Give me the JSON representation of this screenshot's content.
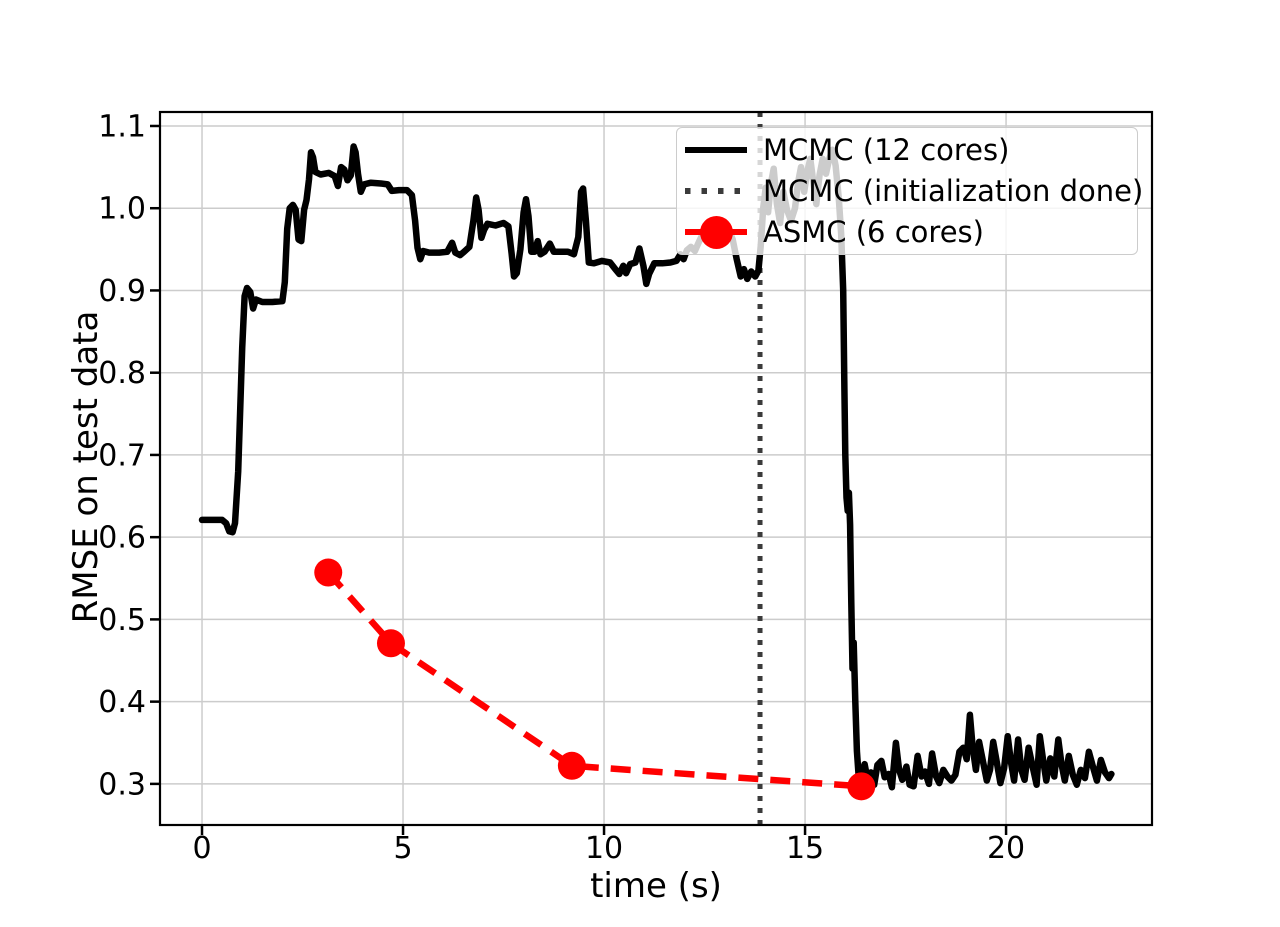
{
  "figure": {
    "background": "#ffffff"
  },
  "colors": {
    "mcmc_line": "#000000",
    "init_vline": "#3b3b3b",
    "asmc_line": "#ff0000",
    "grid": "#cccccc",
    "spine": "#000000",
    "legend_border": "#cccccc",
    "legend_background": "rgba(255,255,255,0.8)"
  },
  "legend": {
    "items": [
      {
        "label": "MCMC (12 cores)",
        "color": "#000000",
        "swatch": "solid-line"
      },
      {
        "label": "MCMC (initialization done)",
        "color": "#3b3b3b",
        "swatch": "dotted-line"
      },
      {
        "label": "ASMC (6 cores)",
        "color": "#ff0000",
        "swatch": "line-with-circle-marker"
      }
    ]
  },
  "chart_data": {
    "type": "line",
    "title": "",
    "xlabel": "time (s)",
    "ylabel": "RMSE on test data",
    "xlim": [
      -1.045,
      23.63
    ],
    "ylim": [
      0.25,
      1.117
    ],
    "grid": true,
    "legend_position": "upper right",
    "x_ticks": [
      0,
      5,
      10,
      15,
      20
    ],
    "x_tick_labels": [
      "0",
      "5",
      "10",
      "15",
      "20"
    ],
    "y_ticks": [
      0.3,
      0.4,
      0.5,
      0.6,
      0.7,
      0.8,
      0.9,
      1.0,
      1.1
    ],
    "y_tick_labels": [
      "0.3",
      "0.4",
      "0.5",
      "0.6",
      "0.7",
      "0.8",
      "0.9",
      "1.0",
      "1.1"
    ],
    "series": [
      {
        "name": "MCMC (12 cores)",
        "kind": "line",
        "color": "#000000",
        "linewidth": 6.5,
        "linestyle": "solid",
        "marker": "none",
        "points": [
          [
            0,
            0.621
          ],
          [
            0.5,
            0.621
          ],
          [
            0.6,
            0.617
          ],
          [
            0.68,
            0.607
          ],
          [
            0.76,
            0.606
          ],
          [
            0.82,
            0.617
          ],
          [
            0.9,
            0.68
          ],
          [
            1.0,
            0.83
          ],
          [
            1.06,
            0.893
          ],
          [
            1.12,
            0.903
          ],
          [
            1.2,
            0.898
          ],
          [
            1.27,
            0.878
          ],
          [
            1.34,
            0.889
          ],
          [
            1.5,
            0.886
          ],
          [
            1.75,
            0.886
          ],
          [
            2.0,
            0.887
          ],
          [
            2.06,
            0.91
          ],
          [
            2.12,
            0.975
          ],
          [
            2.18,
            1.0
          ],
          [
            2.26,
            1.004
          ],
          [
            2.33,
            0.998
          ],
          [
            2.4,
            0.962
          ],
          [
            2.47,
            0.96
          ],
          [
            2.54,
            0.998
          ],
          [
            2.6,
            1.01
          ],
          [
            2.66,
            1.035
          ],
          [
            2.71,
            1.068
          ],
          [
            2.76,
            1.062
          ],
          [
            2.82,
            1.044
          ],
          [
            2.95,
            1.041
          ],
          [
            3.15,
            1.043
          ],
          [
            3.3,
            1.039
          ],
          [
            3.38,
            1.027
          ],
          [
            3.46,
            1.05
          ],
          [
            3.54,
            1.047
          ],
          [
            3.62,
            1.034
          ],
          [
            3.7,
            1.04
          ],
          [
            3.77,
            1.075
          ],
          [
            3.82,
            1.068
          ],
          [
            3.88,
            1.042
          ],
          [
            3.95,
            1.02
          ],
          [
            4.03,
            1.029
          ],
          [
            4.2,
            1.031
          ],
          [
            4.45,
            1.03
          ],
          [
            4.62,
            1.029
          ],
          [
            4.72,
            1.021
          ],
          [
            4.9,
            1.022
          ],
          [
            5.1,
            1.022
          ],
          [
            5.22,
            1.016
          ],
          [
            5.3,
            0.985
          ],
          [
            5.36,
            0.952
          ],
          [
            5.43,
            0.938
          ],
          [
            5.5,
            0.948
          ],
          [
            5.65,
            0.946
          ],
          [
            5.9,
            0.946
          ],
          [
            6.1,
            0.947
          ],
          [
            6.22,
            0.958
          ],
          [
            6.3,
            0.946
          ],
          [
            6.42,
            0.943
          ],
          [
            6.52,
            0.947
          ],
          [
            6.65,
            0.953
          ],
          [
            6.75,
            0.985
          ],
          [
            6.82,
            1.013
          ],
          [
            6.88,
            0.998
          ],
          [
            6.95,
            0.964
          ],
          [
            7.02,
            0.974
          ],
          [
            7.1,
            0.981
          ],
          [
            7.3,
            0.979
          ],
          [
            7.5,
            0.982
          ],
          [
            7.62,
            0.978
          ],
          [
            7.7,
            0.945
          ],
          [
            7.76,
            0.917
          ],
          [
            7.83,
            0.921
          ],
          [
            7.92,
            0.95
          ],
          [
            8.0,
            0.995
          ],
          [
            8.06,
            1.011
          ],
          [
            8.12,
            0.99
          ],
          [
            8.19,
            0.947
          ],
          [
            8.27,
            0.947
          ],
          [
            8.35,
            0.96
          ],
          [
            8.42,
            0.944
          ],
          [
            8.52,
            0.947
          ],
          [
            8.65,
            0.957
          ],
          [
            8.75,
            0.947
          ],
          [
            8.9,
            0.947
          ],
          [
            9.1,
            0.947
          ],
          [
            9.25,
            0.944
          ],
          [
            9.36,
            0.965
          ],
          [
            9.43,
            1.02
          ],
          [
            9.48,
            1.024
          ],
          [
            9.55,
            0.985
          ],
          [
            9.62,
            0.934
          ],
          [
            9.75,
            0.933
          ],
          [
            9.95,
            0.936
          ],
          [
            10.15,
            0.934
          ],
          [
            10.28,
            0.926
          ],
          [
            10.38,
            0.92
          ],
          [
            10.48,
            0.93
          ],
          [
            10.55,
            0.921
          ],
          [
            10.65,
            0.932
          ],
          [
            10.78,
            0.934
          ],
          [
            10.88,
            0.951
          ],
          [
            10.98,
            0.93
          ],
          [
            11.05,
            0.908
          ],
          [
            11.12,
            0.92
          ],
          [
            11.25,
            0.933
          ],
          [
            11.45,
            0.933
          ],
          [
            11.65,
            0.934
          ],
          [
            11.8,
            0.936
          ],
          [
            11.9,
            0.944
          ],
          [
            11.98,
            0.938
          ],
          [
            12.06,
            0.949
          ],
          [
            12.16,
            0.953
          ],
          [
            12.26,
            0.948
          ],
          [
            12.36,
            0.959
          ],
          [
            12.46,
            0.969
          ],
          [
            12.56,
            0.976
          ],
          [
            12.68,
            0.971
          ],
          [
            12.8,
            0.965
          ],
          [
            12.95,
            0.97
          ],
          [
            13.1,
            0.974
          ],
          [
            13.2,
            0.962
          ],
          [
            13.3,
            0.938
          ],
          [
            13.4,
            0.917
          ],
          [
            13.48,
            0.926
          ],
          [
            13.56,
            0.914
          ],
          [
            13.66,
            0.923
          ],
          [
            13.76,
            0.917
          ],
          [
            13.84,
            0.924
          ],
          [
            13.9,
            0.955
          ],
          [
            13.96,
            1.0
          ],
          [
            14.02,
            1.025
          ],
          [
            14.08,
            0.995
          ],
          [
            14.15,
            1.03
          ],
          [
            14.22,
            1.048
          ],
          [
            14.3,
            1.005
          ],
          [
            14.38,
            0.982
          ],
          [
            14.46,
            1.02
          ],
          [
            14.55,
            0.998
          ],
          [
            14.65,
            0.985
          ],
          [
            14.75,
            1.0
          ],
          [
            14.83,
            1.032
          ],
          [
            14.9,
            1.05
          ],
          [
            14.98,
            1.02
          ],
          [
            15.06,
            1.046
          ],
          [
            15.13,
            1.06
          ],
          [
            15.2,
            1.034
          ],
          [
            15.28,
            1.005
          ],
          [
            15.36,
            1.04
          ],
          [
            15.44,
            1.06
          ],
          [
            15.52,
            1.042
          ],
          [
            15.6,
            1.06
          ],
          [
            15.68,
            1.071
          ],
          [
            15.76,
            1.052
          ],
          [
            15.84,
            1.012
          ],
          [
            15.9,
            0.968
          ],
          [
            15.95,
            0.9
          ],
          [
            15.98,
            0.78
          ],
          [
            16.0,
            0.7
          ],
          [
            16.03,
            0.648
          ],
          [
            16.06,
            0.632
          ],
          [
            16.09,
            0.654
          ],
          [
            16.12,
            0.615
          ],
          [
            16.15,
            0.52
          ],
          [
            16.18,
            0.44
          ],
          [
            16.21,
            0.472
          ],
          [
            16.25,
            0.4
          ],
          [
            16.29,
            0.34
          ],
          [
            16.33,
            0.312
          ],
          [
            16.4,
            0.308
          ],
          [
            16.48,
            0.324
          ],
          [
            16.56,
            0.304
          ],
          [
            16.64,
            0.314
          ],
          [
            16.72,
            0.299
          ],
          [
            16.8,
            0.323
          ],
          [
            16.9,
            0.328
          ],
          [
            16.98,
            0.308
          ],
          [
            17.08,
            0.312
          ],
          [
            17.16,
            0.296
          ],
          [
            17.26,
            0.35
          ],
          [
            17.34,
            0.317
          ],
          [
            17.42,
            0.305
          ],
          [
            17.52,
            0.321
          ],
          [
            17.6,
            0.299
          ],
          [
            17.7,
            0.297
          ],
          [
            17.8,
            0.334
          ],
          [
            17.9,
            0.309
          ],
          [
            17.98,
            0.315
          ],
          [
            18.08,
            0.3
          ],
          [
            18.16,
            0.337
          ],
          [
            18.26,
            0.309
          ],
          [
            18.34,
            0.301
          ],
          [
            18.44,
            0.317
          ],
          [
            18.54,
            0.309
          ],
          [
            18.64,
            0.304
          ],
          [
            18.74,
            0.311
          ],
          [
            18.84,
            0.339
          ],
          [
            18.94,
            0.344
          ],
          [
            19.02,
            0.33
          ],
          [
            19.1,
            0.384
          ],
          [
            19.17,
            0.344
          ],
          [
            19.25,
            0.317
          ],
          [
            19.33,
            0.351
          ],
          [
            19.42,
            0.329
          ],
          [
            19.52,
            0.304
          ],
          [
            19.6,
            0.317
          ],
          [
            19.68,
            0.351
          ],
          [
            19.76,
            0.329
          ],
          [
            19.86,
            0.301
          ],
          [
            19.95,
            0.319
          ],
          [
            20.04,
            0.358
          ],
          [
            20.12,
            0.327
          ],
          [
            20.2,
            0.304
          ],
          [
            20.3,
            0.354
          ],
          [
            20.38,
            0.317
          ],
          [
            20.46,
            0.305
          ],
          [
            20.56,
            0.344
          ],
          [
            20.66,
            0.321
          ],
          [
            20.76,
            0.299
          ],
          [
            20.84,
            0.358
          ],
          [
            20.92,
            0.329
          ],
          [
            21.0,
            0.304
          ],
          [
            21.1,
            0.331
          ],
          [
            21.2,
            0.309
          ],
          [
            21.3,
            0.354
          ],
          [
            21.38,
            0.324
          ],
          [
            21.46,
            0.304
          ],
          [
            21.56,
            0.334
          ],
          [
            21.66,
            0.311
          ],
          [
            21.76,
            0.299
          ],
          [
            21.86,
            0.317
          ],
          [
            21.96,
            0.307
          ],
          [
            22.06,
            0.339
          ],
          [
            22.16,
            0.321
          ],
          [
            22.26,
            0.304
          ],
          [
            22.36,
            0.329
          ],
          [
            22.46,
            0.314
          ],
          [
            22.56,
            0.307
          ],
          [
            22.62,
            0.312
          ]
        ]
      },
      {
        "name": "MCMC (initialization done)",
        "kind": "vline",
        "x": 13.88,
        "color": "#3b3b3b",
        "linewidth": 5,
        "linestyle": "dotted"
      },
      {
        "name": "ASMC (6 cores)",
        "kind": "line",
        "color": "#ff0000",
        "linewidth": 6.5,
        "linestyle": "dashed",
        "marker": "circle",
        "markersize": 14,
        "points": [
          [
            3.14,
            0.557
          ],
          [
            4.7,
            0.471
          ],
          [
            9.2,
            0.322
          ],
          [
            16.4,
            0.297
          ]
        ]
      }
    ]
  }
}
